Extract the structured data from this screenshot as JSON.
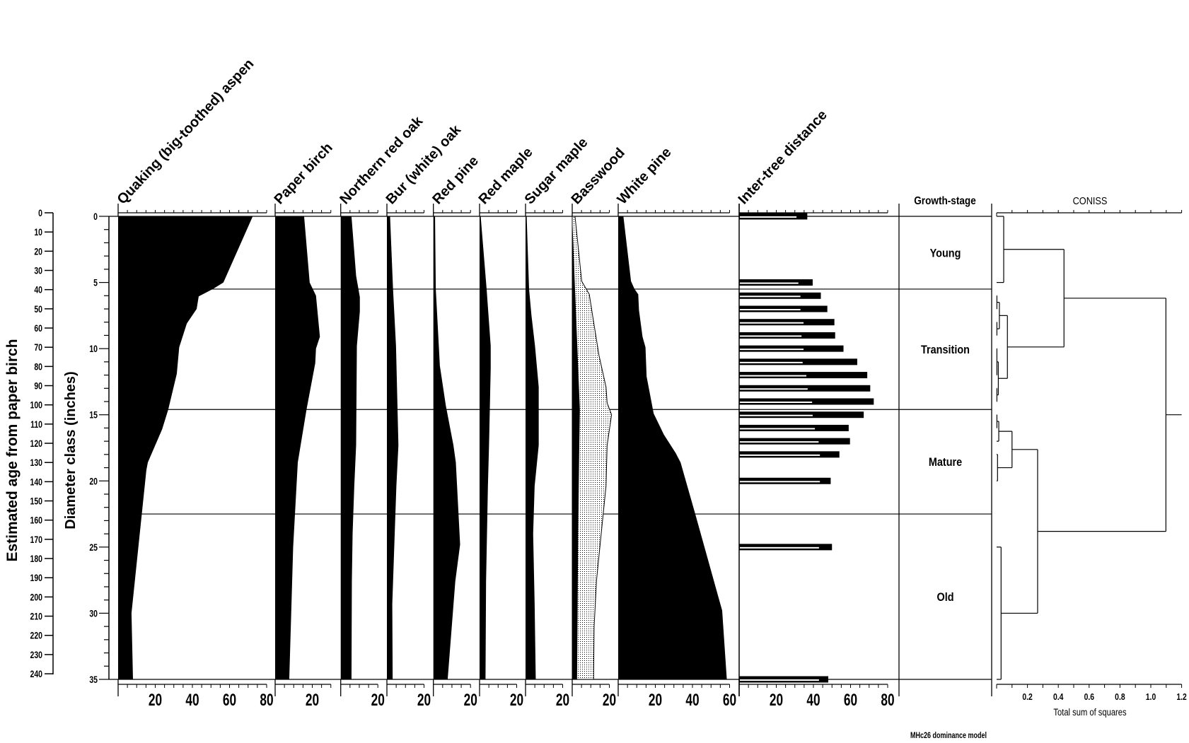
{
  "chart_data": {
    "type": "area",
    "subtype": "stratigraphic diagram with cluster dendrogram",
    "y_axes": {
      "age": {
        "label": "Estimated age from paper birch",
        "range": [
          0,
          240
        ],
        "ticks": [
          "0",
          "10",
          "20",
          "30",
          "40",
          "50",
          "60",
          "70",
          "80",
          "90",
          "100",
          "110",
          "120",
          "130",
          "140",
          "150",
          "160",
          "170",
          "180",
          "190",
          "200",
          "210",
          "220",
          "230",
          "240"
        ]
      },
      "diameter": {
        "label": "Diameter class (inches)",
        "range": [
          0,
          35
        ],
        "ticks": [
          "0",
          "5",
          "10",
          "15",
          "20",
          "25",
          "30",
          "35"
        ]
      }
    },
    "panels": [
      {
        "title": "Quaking (big-toothed) aspen",
        "xmax": 80,
        "tick_labels": [
          "20",
          "40",
          "60",
          "80"
        ],
        "points": [
          [
            0,
            72.5
          ],
          [
            5,
            56.7
          ],
          [
            5.5,
            51
          ],
          [
            6.05,
            43.4
          ],
          [
            7,
            42.3
          ],
          [
            8.1,
            37
          ],
          [
            9.9,
            32.9
          ],
          [
            11.9,
            31.6
          ],
          [
            14.6,
            27
          ],
          [
            16.1,
            23.7
          ],
          [
            18.6,
            16
          ],
          [
            19.2,
            15.2
          ],
          [
            30,
            7.2
          ],
          [
            35,
            8
          ]
        ]
      },
      {
        "title": "Paper birch",
        "xmax": 30,
        "tick_labels": [
          "20"
        ],
        "points": [
          [
            0,
            15.6
          ],
          [
            5,
            18.6
          ],
          [
            6,
            22
          ],
          [
            9.1,
            24.1
          ],
          [
            10,
            22
          ],
          [
            11.1,
            21.6
          ],
          [
            14.6,
            16.9
          ],
          [
            18.6,
            12.2
          ],
          [
            25,
            9.7
          ],
          [
            35,
            7.6
          ]
        ]
      },
      {
        "title": "Northern red oak",
        "xmax": 20,
        "tick_labels": [
          "20"
        ],
        "points": [
          [
            0,
            5.8
          ],
          [
            4.5,
            8.3
          ],
          [
            6.1,
            10.3
          ],
          [
            7.2,
            10.3
          ],
          [
            9.8,
            8.7
          ],
          [
            17.3,
            8.3
          ],
          [
            20.4,
            7.3
          ],
          [
            24,
            6.4
          ],
          [
            27.6,
            6
          ],
          [
            35,
            5.8
          ]
        ]
      },
      {
        "title": "Bur (white) oak",
        "xmax": 20,
        "tick_labels": [
          "20"
        ],
        "points": [
          [
            0,
            1.7
          ],
          [
            5.5,
            3.3
          ],
          [
            9.8,
            4.9
          ],
          [
            17.3,
            6.2
          ],
          [
            20.4,
            5.1
          ],
          [
            24,
            4.2
          ],
          [
            29.3,
            2.9
          ],
          [
            35,
            3.1
          ]
        ]
      },
      {
        "title": "Red pine",
        "xmax": 20,
        "tick_labels": [
          "20"
        ],
        "points": [
          [
            0,
            0.9
          ],
          [
            5.5,
            1.3
          ],
          [
            11.3,
            3.5
          ],
          [
            14.3,
            6.7
          ],
          [
            17.3,
            10.8
          ],
          [
            18.6,
            12.1
          ],
          [
            24.8,
            14.4
          ],
          [
            27.6,
            11.8
          ],
          [
            35,
            7.7
          ]
        ]
      },
      {
        "title": "Red maple",
        "xmax": 20,
        "tick_labels": [
          "20"
        ],
        "points": [
          [
            0,
            0.6
          ],
          [
            5.5,
            3.8
          ],
          [
            9.8,
            6
          ],
          [
            11.5,
            6
          ],
          [
            17.3,
            5.1
          ],
          [
            20.4,
            4.5
          ],
          [
            27.6,
            3.5
          ],
          [
            35,
            3.2
          ]
        ]
      },
      {
        "title": "Sugar maple",
        "xmax": 20,
        "tick_labels": [
          "20"
        ],
        "points": [
          [
            0,
            0.6
          ],
          [
            5.5,
            1.9
          ],
          [
            7.5,
            3.2
          ],
          [
            9.8,
            5.1
          ],
          [
            12.9,
            7.1
          ],
          [
            17.3,
            7.1
          ],
          [
            20.4,
            4.9
          ],
          [
            24,
            4.1
          ],
          [
            29.3,
            4.9
          ],
          [
            35,
            5.5
          ]
        ]
      },
      {
        "title": "Basswood",
        "xmax": 20,
        "tick_labels": [
          "20"
        ],
        "points": [
          [
            0,
            0
          ],
          [
            5.5,
            1.5
          ],
          [
            14.6,
            4.1
          ],
          [
            17.3,
            3.8
          ],
          [
            24,
            3.2
          ],
          [
            35,
            2.6
          ]
        ],
        "exaggerated_points": [
          [
            0,
            1.5
          ],
          [
            2.7,
            3.5
          ],
          [
            4.9,
            5.1
          ],
          [
            5.9,
            9.2
          ],
          [
            7.7,
            11.2
          ],
          [
            10.5,
            14.4
          ],
          [
            12.9,
            18.2
          ],
          [
            14.1,
            18.8
          ],
          [
            15,
            21.2
          ],
          [
            17.3,
            18.8
          ],
          [
            20.4,
            18.2
          ],
          [
            24,
            15.6
          ],
          [
            27.5,
            13.1
          ],
          [
            31,
            11.8
          ],
          [
            35,
            11.5
          ]
        ]
      },
      {
        "title": "White pine",
        "xmax": 60,
        "tick_labels": [
          "20",
          "40",
          "60"
        ],
        "points": [
          [
            0,
            2.8
          ],
          [
            4.9,
            6.9
          ],
          [
            5.5,
            8.8
          ],
          [
            5.9,
            10.8
          ],
          [
            7.1,
            11.2
          ],
          [
            9.1,
            13.1
          ],
          [
            9.9,
            14.7
          ],
          [
            12.1,
            15.3
          ],
          [
            14.9,
            19.1
          ],
          [
            16.5,
            24.6
          ],
          [
            17.9,
            31
          ],
          [
            18.6,
            33.6
          ],
          [
            22.6,
            41.7
          ],
          [
            29.8,
            56
          ],
          [
            35,
            58.5
          ]
        ]
      }
    ],
    "inter_tree": {
      "title": "Inter-tree distance",
      "xmax": 80,
      "tick_labels": [
        "20",
        "40",
        "60",
        "80"
      ],
      "bars": [
        [
          0,
          36.7,
          30.9
        ],
        [
          5,
          39.6,
          31.9
        ],
        [
          6,
          44,
          33
        ],
        [
          7,
          47.5,
          33
        ],
        [
          8,
          51.3,
          34.7
        ],
        [
          9,
          51.7,
          33.6
        ],
        [
          10,
          56.2,
          34.7
        ],
        [
          11,
          63.6,
          34.2
        ],
        [
          12,
          69,
          36.2
        ],
        [
          13,
          70.6,
          36.9
        ],
        [
          14,
          72.5,
          39.3
        ],
        [
          15,
          67.1,
          39.6
        ],
        [
          16,
          59,
          40.8
        ],
        [
          17,
          59.7,
          42.8
        ],
        [
          18,
          54,
          43.5
        ],
        [
          20,
          49.3,
          43.5
        ],
        [
          25,
          50,
          43
        ],
        [
          35,
          48,
          43
        ]
      ]
    },
    "growth_stage": {
      "title": "Growth-stage",
      "zone_boundaries": [
        5.5,
        14.6,
        22.5
      ],
      "zones": [
        {
          "label": "Young",
          "from": 0,
          "to": 5.5
        },
        {
          "label": "Transition",
          "from": 5.5,
          "to": 14.6
        },
        {
          "label": "Mature",
          "from": 14.6,
          "to": 22.5
        },
        {
          "label": "Old",
          "from": 22.5,
          "to": 35
        }
      ]
    },
    "coniss": {
      "title": "CONISS",
      "xlabel": "Total sum of squares",
      "xmax": 1.2,
      "tick_labels": [
        "0.2",
        "0.4",
        "0.6",
        "0.8",
        "1.0",
        "1.2"
      ],
      "tree": {
        "h": 1.098,
        "c": [
          {
            "h": 0.437,
            "c": [
              {
                "h": 0.046,
                "c": [
                  0,
                  5
                ]
              },
              {
                "h": 0.07,
                "c": [
                  {
                    "h": 0.018,
                    "c": [
                      {
                        "h": 0.002,
                        "c": [
                          6,
                          7
                        ]
                      },
                      {
                        "h": 0.002,
                        "c": [
                          8,
                          9
                        ]
                      }
                    ]
                  },
                  {
                    "h": 0.011,
                    "c": [
                      {
                        "h": 0.002,
                        "c": [
                          10,
                          11,
                          12
                        ]
                      },
                      {
                        "h": 0.002,
                        "c": [
                          13,
                          14
                        ]
                      }
                    ]
                  }
                ]
              }
            ]
          },
          {
            "h": 0.266,
            "c": [
              {
                "h": 0.1,
                "c": [
                  {
                    "h": 0.014,
                    "c": [
                      {
                        "h": 0.002,
                        "c": [
                          15,
                          16
                        ]
                      },
                      17
                    ]
                  },
                  {
                    "h": 0.006,
                    "c": [
                      18,
                      20
                    ]
                  }
                ]
              },
              {
                "h": 0.029,
                "c": [
                  25,
                  35
                ]
              }
            ]
          }
        ]
      }
    },
    "footer": "MHc26 dominance model"
  }
}
